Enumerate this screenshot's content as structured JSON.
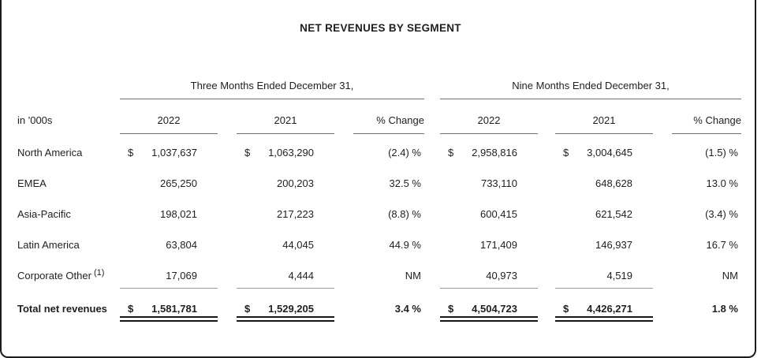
{
  "page": {
    "title": "NET REVENUES BY SEGMENT"
  },
  "table": {
    "unit_label": "in '000s",
    "group_headers": {
      "three_months": "Three Months Ended December 31,",
      "nine_months": "Nine Months Ended December 31,"
    },
    "column_headers": {
      "col_2022": "2022",
      "col_2021": "2021",
      "col_change": "% Change"
    },
    "rows": [
      {
        "label": "North America",
        "tm_2022_currency": "$",
        "tm_2022": "1,037,637",
        "tm_2021_currency": "$",
        "tm_2021": "1,063,290",
        "tm_change": "(2.4) %",
        "nm_2022_currency": "$",
        "nm_2022": "2,958,816",
        "nm_2021_currency": "$",
        "nm_2021": "3,004,645",
        "nm_change": "(1.5) %"
      },
      {
        "label": "EMEA",
        "tm_2022": "265,250",
        "tm_2021": "200,203",
        "tm_change": "32.5 %",
        "nm_2022": "733,110",
        "nm_2021": "648,628",
        "nm_change": "13.0 %"
      },
      {
        "label": "Asia-Pacific",
        "tm_2022": "198,021",
        "tm_2021": "217,223",
        "tm_change": "(8.8) %",
        "nm_2022": "600,415",
        "nm_2021": "621,542",
        "nm_change": "(3.4) %"
      },
      {
        "label": "Latin America",
        "tm_2022": "63,804",
        "tm_2021": "44,045",
        "tm_change": "44.9 %",
        "nm_2022": "171,409",
        "nm_2021": "146,937",
        "nm_change": "16.7 %"
      },
      {
        "label": "Corporate Other",
        "footnote": "(1)",
        "tm_2022": "17,069",
        "tm_2021": "4,444",
        "tm_change": "NM",
        "nm_2022": "40,973",
        "nm_2021": "4,519",
        "nm_change": "NM"
      }
    ],
    "total_row": {
      "label": "Total net revenues",
      "tm_2022_currency": "$",
      "tm_2022": "1,581,781",
      "tm_2021_currency": "$",
      "tm_2021": "1,529,205",
      "tm_change": "3.4 %",
      "nm_2022_currency": "$",
      "nm_2022": "4,504,723",
      "nm_2021_currency": "$",
      "nm_2021": "4,426,271",
      "nm_change": "1.8 %"
    }
  }
}
